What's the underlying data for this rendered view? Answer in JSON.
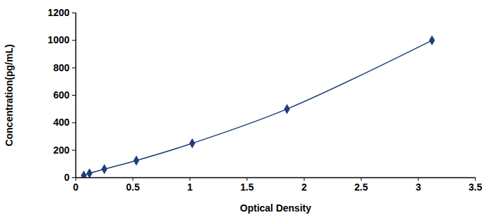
{
  "chart_data": {
    "type": "line",
    "x_label": "Optical Density",
    "y_label": "Concentration(pg/mL)",
    "x": [
      0.07,
      0.12,
      0.25,
      0.53,
      1.02,
      1.85,
      3.12
    ],
    "values": [
      15.6,
      31.2,
      62.5,
      125,
      250,
      500,
      1000
    ],
    "color": "#1f3d7a",
    "marker": "diamond",
    "line_style": "smooth",
    "grid": false,
    "xlim": [
      0,
      3.5
    ],
    "xticks": [
      0,
      0.5,
      1,
      1.5,
      2,
      2.5,
      3,
      3.5
    ],
    "ylim": [
      0,
      1200
    ],
    "yticks": [
      0,
      200,
      400,
      600,
      800,
      1000,
      1200
    ]
  }
}
